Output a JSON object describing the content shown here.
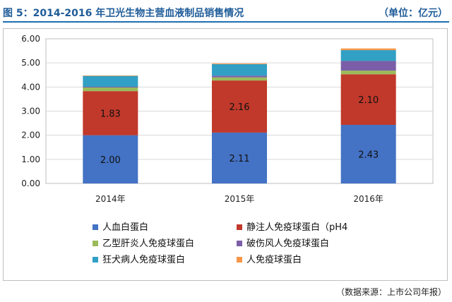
{
  "header": {
    "title": "图 5：2014-2016 年卫光生物主营血液制品销售情况",
    "unit": "（单位：亿元）"
  },
  "footer": {
    "source": "（数据来源：上市公司年报）"
  },
  "colors": {
    "accent": "#1f6fb2",
    "title": "#1f5c99"
  },
  "chart_data": {
    "type": "bar",
    "stacked": true,
    "categories": [
      "2014年",
      "2015年",
      "2016年"
    ],
    "ylim": [
      0,
      6
    ],
    "yticks": [
      "0.00",
      "1.00",
      "2.00",
      "3.00",
      "4.00",
      "5.00",
      "6.00"
    ],
    "grid": true,
    "legend_position": "bottom",
    "series": [
      {
        "name": "人血白蛋白",
        "color": "#4472c4",
        "values": [
          2.0,
          2.11,
          2.43
        ],
        "labels": [
          "2.00",
          "2.11",
          "2.43"
        ]
      },
      {
        "name": "静注人免疫球蛋白（pH4",
        "color": "#c0392b",
        "values": [
          1.83,
          2.16,
          2.1
        ],
        "labels": [
          "1.83",
          "2.16",
          "2.10"
        ]
      },
      {
        "name": "乙型肝炎人免疫球蛋白",
        "color": "#9bbb59",
        "values": [
          0.15,
          0.13,
          0.15
        ]
      },
      {
        "name": "破伤风人免疫球蛋白",
        "color": "#7b5ea7",
        "values": [
          0.03,
          0.07,
          0.4
        ]
      },
      {
        "name": "狂犬病人免疫球蛋白",
        "color": "#31a0c4",
        "values": [
          0.45,
          0.48,
          0.45
        ]
      },
      {
        "name": "人免疫球蛋白",
        "color": "#f79646",
        "values": [
          0.02,
          0.03,
          0.07
        ]
      }
    ]
  }
}
